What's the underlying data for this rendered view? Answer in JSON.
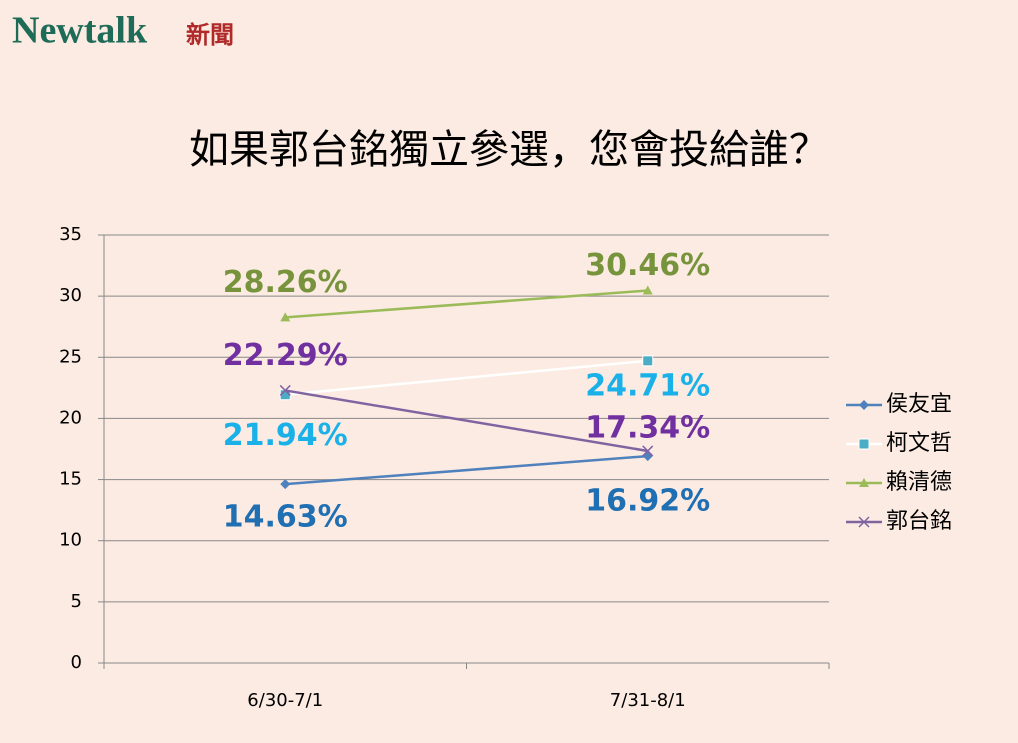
{
  "logo": {
    "name": "Newtalk",
    "suffix": "新聞"
  },
  "chart_data": {
    "type": "line",
    "title": "如果郭台銘獨立參選，您會投給誰？",
    "categories": [
      "6/30-7/1",
      "7/31-8/1"
    ],
    "series": [
      {
        "name": "侯友宜",
        "color": "#4f81bd",
        "label_color": "#1f6fb2",
        "marker": "diamond",
        "values": [
          14.63,
          16.92
        ],
        "value_labels": [
          "14.63%",
          "16.92%"
        ]
      },
      {
        "name": "柯文哲",
        "color": "#ffffff",
        "marker_color": "#4bacc6",
        "label_color": "#1ab0e8",
        "marker": "square",
        "values": [
          21.94,
          24.71
        ],
        "value_labels": [
          "21.94%",
          "24.71%"
        ]
      },
      {
        "name": "賴清德",
        "color": "#9bbb59",
        "label_color": "#77933c",
        "marker": "triangle",
        "values": [
          28.26,
          30.46
        ],
        "value_labels": [
          "28.26%",
          "30.46%"
        ]
      },
      {
        "name": "郭台銘",
        "color": "#8064a2",
        "label_color": "#7030a0",
        "marker": "x",
        "values": [
          22.29,
          17.34
        ],
        "value_labels": [
          "22.29%",
          "17.34%"
        ]
      }
    ],
    "ylim": [
      0,
      35
    ],
    "yticks": [
      0,
      5,
      10,
      15,
      20,
      25,
      30,
      35
    ],
    "grid": true,
    "legend": "right"
  }
}
